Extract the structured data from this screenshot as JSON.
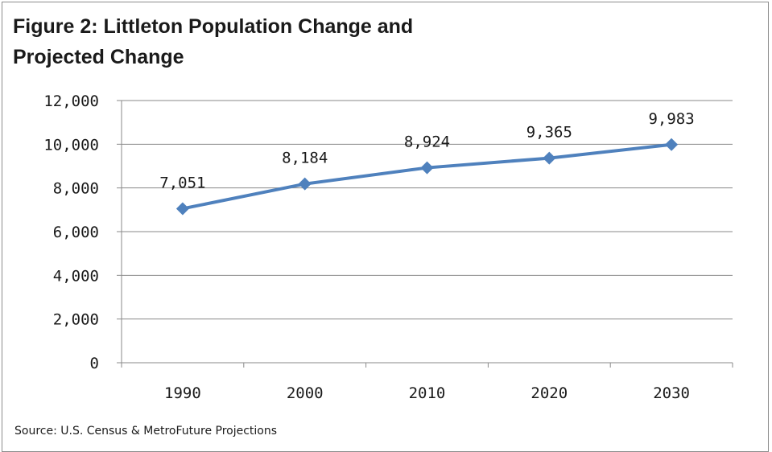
{
  "chart_data": {
    "type": "line",
    "title_lines": [
      "Figure 2: Littleton Population Change and",
      "Projected Change"
    ],
    "categories": [
      "1990",
      "2000",
      "2010",
      "2020",
      "2030"
    ],
    "series": [
      {
        "values": [
          7051,
          8184,
          8924,
          9365,
          9983
        ],
        "data_labels": [
          "7,051",
          "8,184",
          "8,924",
          "9,365",
          "9,983"
        ],
        "color": "#4F81BD"
      }
    ],
    "ylim": [
      0,
      12000
    ],
    "y_ticks": [
      0,
      2000,
      4000,
      6000,
      8000,
      10000,
      12000
    ],
    "y_tick_labels": [
      "0",
      "2,000",
      "4,000",
      "6,000",
      "8,000",
      "10,000",
      "12,000"
    ],
    "xlabel": "",
    "ylabel": "",
    "grid": true,
    "legend": "none",
    "source": "Source: U.S. Census & MetroFuture Projections"
  }
}
